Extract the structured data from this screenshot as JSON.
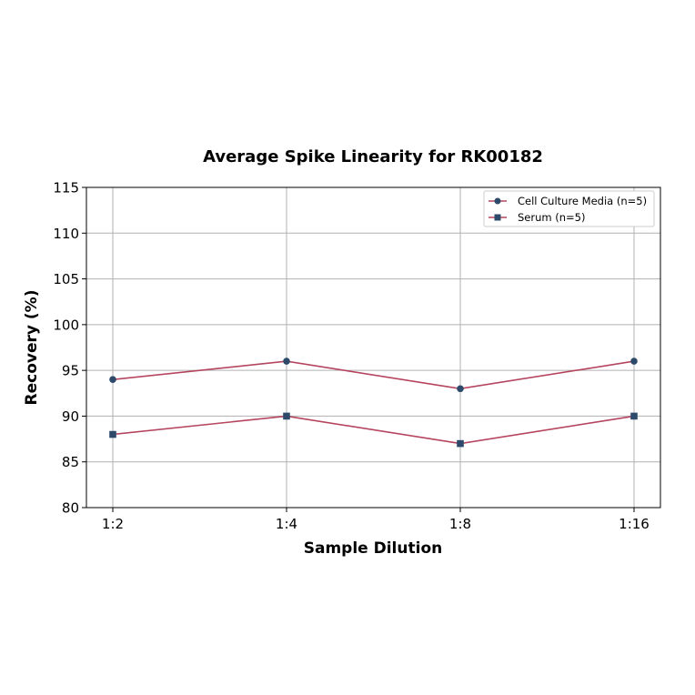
{
  "chart_data": {
    "type": "line",
    "title": "Average Spike Linearity for RK00182",
    "xlabel": "Sample Dilution",
    "ylabel": "Recovery (%)",
    "categories": [
      "1:2",
      "1:4",
      "1:8",
      "1:16"
    ],
    "ylim": [
      80,
      115
    ],
    "yticks": [
      80,
      85,
      90,
      95,
      100,
      105,
      110,
      115
    ],
    "grid": true,
    "legend_position": "upper right",
    "series": [
      {
        "name": "Cell Culture Media (n=5)",
        "values": [
          94,
          96,
          93,
          96
        ],
        "marker": "circle",
        "line_color": "#b5455f",
        "marker_color": "#2e4a6b"
      },
      {
        "name": "Serum (n=5)",
        "values": [
          88,
          90,
          87,
          90
        ],
        "marker": "square",
        "line_color": "#b5455f",
        "marker_color": "#2e4a6b"
      }
    ]
  }
}
